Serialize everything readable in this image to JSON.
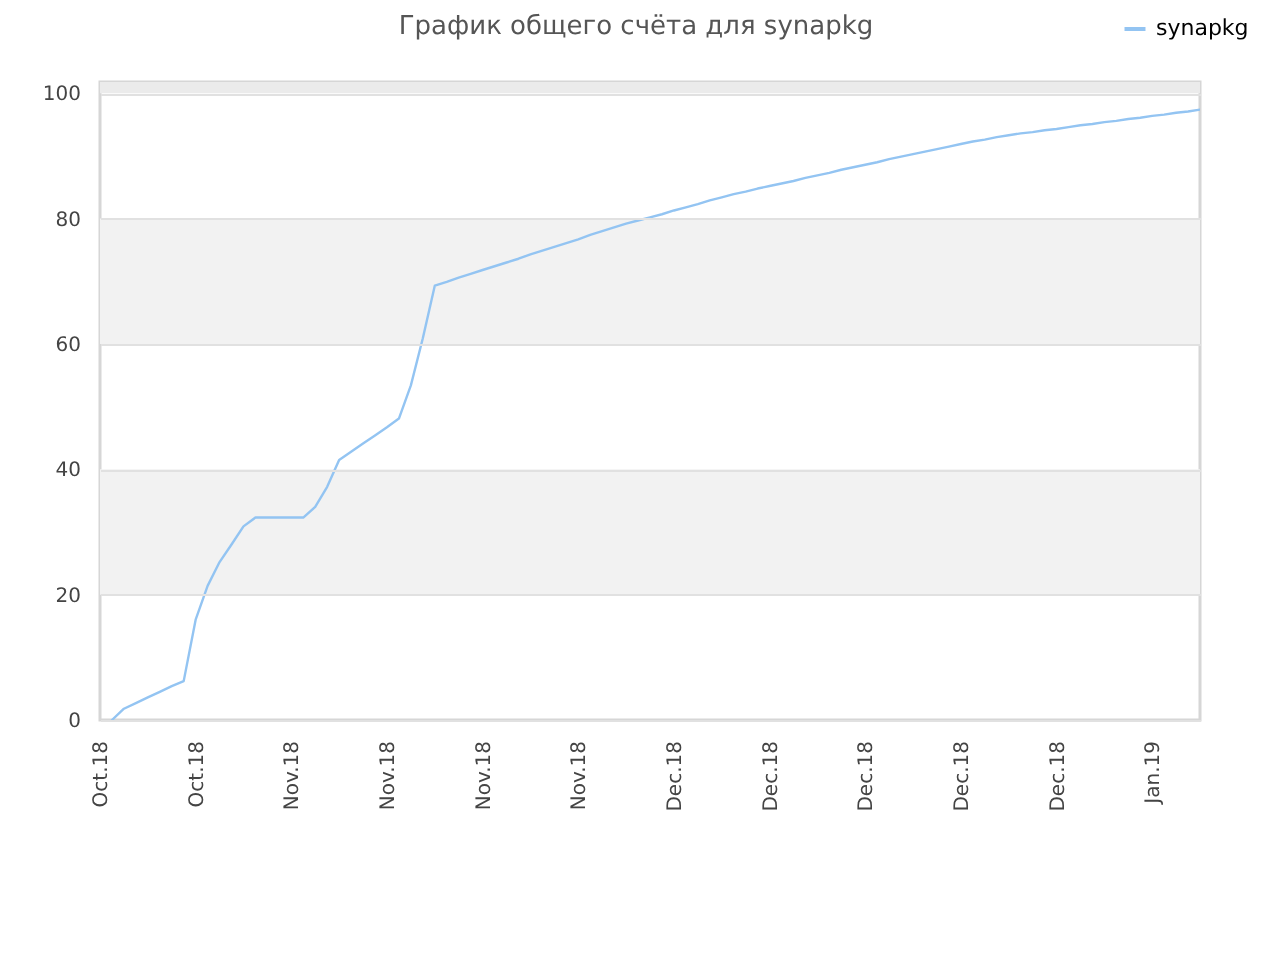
{
  "chart_data": {
    "type": "line",
    "title": "График общего счёта для synapkg",
    "categories": [
      "Oct.18",
      null,
      null,
      null,
      null,
      null,
      null,
      null,
      "Oct.18",
      null,
      null,
      null,
      null,
      null,
      null,
      null,
      "Nov.18",
      null,
      null,
      null,
      null,
      null,
      null,
      null,
      "Nov.18",
      null,
      null,
      null,
      null,
      null,
      null,
      null,
      "Nov.18",
      null,
      null,
      null,
      null,
      null,
      null,
      null,
      "Nov.18",
      null,
      null,
      null,
      null,
      null,
      null,
      null,
      "Dec.18",
      null,
      null,
      null,
      null,
      null,
      null,
      null,
      "Dec.18",
      null,
      null,
      null,
      null,
      null,
      null,
      null,
      "Dec.18",
      null,
      null,
      null,
      null,
      null,
      null,
      null,
      "Dec.18",
      null,
      null,
      null,
      null,
      null,
      null,
      null,
      "Dec.18",
      null,
      null,
      null,
      null,
      null,
      null,
      null,
      "Jan.19",
      null,
      null,
      null,
      null
    ],
    "series": [
      {
        "name": "synapkg",
        "color": "#93c4f2",
        "values": [
          null,
          0,
          1.8,
          2.7,
          3.6,
          4.5,
          5.4,
          6.2,
          16,
          21.4,
          25.2,
          28,
          30.9,
          32.3,
          32.3,
          32.3,
          32.3,
          32.3,
          34,
          37.2,
          41.5,
          42.8,
          44.1,
          45.4,
          46.7,
          48.1,
          53.4,
          60.9,
          69.3,
          69.9,
          70.6,
          71.2,
          71.8,
          72.4,
          73,
          73.6,
          74.3,
          74.9,
          75.5,
          76.1,
          76.7,
          77.4,
          78,
          78.6,
          79.2,
          79.7,
          80.2,
          80.7,
          81.3,
          81.8,
          82.3,
          82.9,
          83.4,
          83.9,
          84.3,
          84.8,
          85.2,
          85.6,
          86,
          86.5,
          86.9,
          87.3,
          87.8,
          88.2,
          88.6,
          89,
          89.5,
          89.9,
          90.3,
          90.7,
          91.1,
          91.5,
          91.9,
          92.3,
          92.6,
          93,
          93.3,
          93.6,
          93.8,
          94.1,
          94.3,
          94.6,
          94.9,
          95.1,
          95.4,
          95.6,
          95.9,
          96.1,
          96.4,
          96.6,
          96.9,
          97.1,
          97.4
        ]
      }
    ],
    "ylim": [
      0,
      101.8
    ],
    "yticks": [
      0,
      20,
      40,
      60,
      80,
      100
    ],
    "grid": "y",
    "legend": "top right",
    "bands": [
      {
        "axis": "y",
        "from": 20,
        "to": 40,
        "color": "#f2f2f2"
      },
      {
        "axis": "y",
        "from": 60,
        "to": 80,
        "color": "#f2f2f2"
      },
      {
        "axis": "y",
        "from": 100,
        "to": 101.8,
        "color": "#ebebeb"
      }
    ]
  }
}
